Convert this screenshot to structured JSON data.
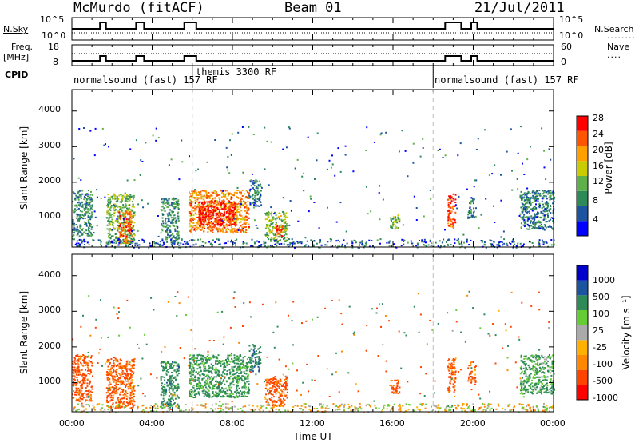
{
  "header": {
    "station": "McMurdo (fitACF)",
    "beam": "Beam 01",
    "date": "21/Jul/2011"
  },
  "summary_panels": {
    "nsky_label": "N.Sky",
    "nsearch_label": "N.Search",
    "nsky_ticks": [
      "10^5",
      "10^0"
    ],
    "nsearch_ticks": [
      "10^5",
      "10^0"
    ],
    "freq_label_line1": "Freq.",
    "freq_label_line2": "[MHz]",
    "freq_ticks": [
      "18",
      "8"
    ],
    "nave_label": "Nave",
    "nave_ticks": [
      "60",
      "0"
    ],
    "cpid_label": "CPID",
    "cpid_segments": [
      {
        "label": "normalsound (fast)  157 RF",
        "start_hour": 0
      },
      {
        "label": "themis 3300 RF",
        "start_hour": 6
      },
      {
        "label": "normalsound (fast)  157 RF",
        "start_hour": 18
      }
    ]
  },
  "colors": {
    "power_scale": [
      "#0000ff",
      "#1c54a0",
      "#2e8b57",
      "#5fb04a",
      "#c8cc00",
      "#ffa000",
      "#ff5500",
      "#ff0000"
    ],
    "velocity_scale": [
      "#ff0000",
      "#ff4400",
      "#ff8800",
      "#ffb000",
      "#aaaaaa",
      "#66cc33",
      "#2e8b57",
      "#1c54a0",
      "#0000cc"
    ],
    "ground_scatter": "#999999",
    "transition_line": "#bbbbbb"
  },
  "chart_data": [
    {
      "type": "heatmap",
      "title": "Power",
      "xlabel": "Time UT",
      "ylabel": "Slant Range [km]",
      "xlim": [
        0,
        24
      ],
      "ylim": [
        180,
        4600
      ],
      "yticks": [
        "1000",
        "2000",
        "3000",
        "4000"
      ],
      "colorbar_label": "Power [dB]",
      "colorbar_ticks": [
        "4",
        "8",
        "12",
        "16",
        "20",
        "24",
        "28"
      ],
      "colorbar_range": [
        0,
        30
      ],
      "echo_regions": [
        {
          "t0": 0.0,
          "t1": 1.0,
          "r0": 500,
          "r1": 1800,
          "level": 9
        },
        {
          "t0": 1.7,
          "t1": 3.1,
          "r0": 300,
          "r1": 1700,
          "level": 13
        },
        {
          "t0": 2.3,
          "t1": 3.0,
          "r0": 300,
          "r1": 1200,
          "level": 24
        },
        {
          "t0": 4.4,
          "t1": 5.3,
          "r0": 300,
          "r1": 1600,
          "level": 10
        },
        {
          "t0": 5.8,
          "t1": 8.8,
          "r0": 600,
          "r1": 1800,
          "level": 22
        },
        {
          "t0": 6.3,
          "t1": 8.1,
          "r0": 800,
          "r1": 1500,
          "level": 29
        },
        {
          "t0": 8.8,
          "t1": 9.4,
          "r0": 1300,
          "r1": 2100,
          "level": 8
        },
        {
          "t0": 9.6,
          "t1": 10.7,
          "r0": 350,
          "r1": 1200,
          "level": 14
        },
        {
          "t0": 10.1,
          "t1": 10.5,
          "r0": 500,
          "r1": 800,
          "level": 26
        },
        {
          "t0": 15.8,
          "t1": 16.3,
          "r0": 700,
          "r1": 1100,
          "level": 13
        },
        {
          "t0": 18.7,
          "t1": 19.1,
          "r0": 750,
          "r1": 1700,
          "level": 26
        },
        {
          "t0": 19.7,
          "t1": 20.1,
          "r0": 1000,
          "r1": 1600,
          "level": 8
        },
        {
          "t0": 22.3,
          "t1": 24.0,
          "r0": 700,
          "r1": 1800,
          "level": 8
        }
      ]
    },
    {
      "type": "heatmap",
      "title": "Velocity",
      "xlabel": "Time UT",
      "ylabel": "Slant Range [km]",
      "xlim": [
        0,
        24
      ],
      "ylim": [
        180,
        4600
      ],
      "yticks": [
        "1000",
        "2000",
        "3000",
        "4000"
      ],
      "colorbar_label": "Velocity [m s⁻¹]",
      "colorbar_ticks": [
        "1000",
        "500",
        "100",
        "25",
        "-25",
        "-100",
        "-500",
        "-1000"
      ],
      "colorbar_range": [
        -1000,
        1000
      ],
      "echo_regions": [
        {
          "t0": 0.0,
          "t1": 1.0,
          "r0": 500,
          "r1": 1800,
          "level": -200
        },
        {
          "t0": 1.7,
          "t1": 3.1,
          "r0": 300,
          "r1": 1700,
          "level": -150
        },
        {
          "t0": 4.4,
          "t1": 5.3,
          "r0": 300,
          "r1": 1600,
          "level": 300
        },
        {
          "t0": 5.8,
          "t1": 8.8,
          "r0": 600,
          "r1": 1800,
          "level": 200
        },
        {
          "t0": 8.8,
          "t1": 9.4,
          "r0": 1300,
          "r1": 2100,
          "level": 400
        },
        {
          "t0": 9.6,
          "t1": 10.7,
          "r0": 350,
          "r1": 1200,
          "level": -150
        },
        {
          "t0": 15.8,
          "t1": 16.3,
          "r0": 700,
          "r1": 1100,
          "level": -150
        },
        {
          "t0": 18.7,
          "t1": 19.1,
          "r0": 750,
          "r1": 1700,
          "level": -150
        },
        {
          "t0": 19.7,
          "t1": 20.1,
          "r0": 1000,
          "r1": 1600,
          "level": -120
        },
        {
          "t0": 22.3,
          "t1": 24.0,
          "r0": 700,
          "r1": 1800,
          "level": 150
        }
      ]
    }
  ],
  "x_axis": {
    "ticks": [
      "00:00",
      "04:00",
      "08:00",
      "12:00",
      "16:00",
      "20:00",
      "00:00"
    ],
    "label": "Time UT"
  }
}
